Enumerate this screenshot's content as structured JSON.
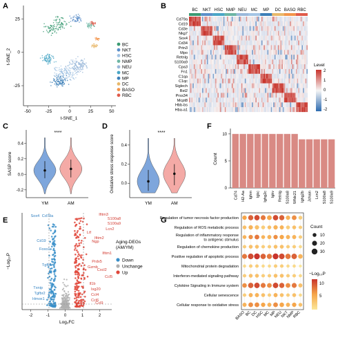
{
  "panels": {
    "A": {
      "letter": "A",
      "xlabel": "t-SNE_1",
      "ylabel": "t-SNE_2",
      "xticks": [
        "-50",
        "-25",
        "0",
        "25",
        "50"
      ],
      "yticks": [
        "25",
        "0",
        "-25"
      ],
      "legend": [
        {
          "label": "BC",
          "color": "#3a9a72"
        },
        {
          "label": "NKT",
          "color": "#5b8fc9"
        },
        {
          "label": "HSC",
          "color": "#a3c4e4"
        },
        {
          "label": "NMP",
          "color": "#6cb5a3"
        },
        {
          "label": "NEU",
          "color": "#9ab8da"
        },
        {
          "label": "MC",
          "color": "#4aa6c6"
        },
        {
          "label": "MP",
          "color": "#3d7fb8"
        },
        {
          "label": "DC",
          "color": "#e8b86a"
        },
        {
          "label": "BASO",
          "color": "#f2944a"
        },
        {
          "label": "RBC",
          "color": "#e05a4a"
        }
      ]
    },
    "B": {
      "letter": "B",
      "columns": [
        {
          "label": "BC",
          "color": "#3a9a72"
        },
        {
          "label": "NKT",
          "color": "#5b8fc9"
        },
        {
          "label": "HSC",
          "color": "#4aa6c6"
        },
        {
          "label": "NMP",
          "color": "#6cb5a3"
        },
        {
          "label": "NEU",
          "color": "#9ab8da"
        },
        {
          "label": "MC",
          "color": "#a3c4e4"
        },
        {
          "label": "MP",
          "color": "#3d7fb8"
        },
        {
          "label": "DC",
          "color": "#e8b86a"
        },
        {
          "label": "BASO",
          "color": "#f2944a"
        },
        {
          "label": "RBC",
          "color": "#e05a4a"
        }
      ],
      "genes": [
        "Cd79a",
        "Cd19",
        "Cd3e",
        "Nkg7",
        "Sox4",
        "Cd34",
        "Prtn3",
        "Mpo",
        "Retnlg",
        "S100a9",
        "Cpa3",
        "Fn1",
        "C1qa",
        "C1qc",
        "Siglech",
        "Bst2",
        "Prss34",
        "Mcpt8",
        "Hbb-bs",
        "Hba-a1"
      ],
      "legend_title": "Level",
      "legend_ticks": [
        "2",
        "1",
        "0",
        "-1",
        "-2"
      ]
    },
    "C": {
      "letter": "C",
      "ylabel": "SASP score",
      "signif": "****",
      "groups": [
        "YM",
        "AM"
      ],
      "yticks": [
        "0.4",
        "0.2",
        "0.0",
        "-0.2"
      ]
    },
    "D": {
      "letter": "D",
      "ylabel": "Oxidative stress response score",
      "signif": "****",
      "groups": [
        "YM",
        "AM"
      ],
      "yticks": [
        "0.4",
        "0.2",
        "0.0"
      ]
    },
    "F": {
      "letter": "F",
      "ylabel": "Count",
      "yticks": [
        "10",
        "5",
        "0"
      ]
    },
    "E": {
      "letter": "E",
      "xlabel": "Log₂FC",
      "ylabel": "−Log₁₀P",
      "xticks": [
        "-2",
        "-1",
        "0",
        "1",
        "2"
      ],
      "legend_title": "Aging-DEGs\n(AM/YM)",
      "legend": [
        {
          "label": "Down",
          "color": "#3a8fc9"
        },
        {
          "label": "Unchange",
          "color": "#b0b0b0"
        },
        {
          "label": "Up",
          "color": "#e0463a"
        }
      ],
      "down_labels": [
        "Sox4",
        "Cd79a",
        "Cd19",
        "Foxo1",
        "Tgfb1",
        "Txnip",
        "Tgfbr2",
        "Hmox1"
      ],
      "up_labels": [
        "Ifitm3",
        "S100a8",
        "S100a9",
        "Lcn2",
        "Ltf",
        "Ifitm2",
        "Ifitm1",
        "Ccl5",
        "Cxcl2",
        "Ccl9",
        "Prdx5",
        "Il1b",
        "Gzmb",
        "Isg20",
        "Ccl4",
        "Ccl6",
        "Ngp"
      ]
    },
    "G": {
      "letter": "G",
      "size_legend_title": "Count",
      "size_legend": [
        "10",
        "20",
        "30"
      ],
      "color_legend_title": "−Log₁₀P",
      "color_legend_ticks": [
        "10",
        "5"
      ],
      "columns": [
        "BASO",
        "BC",
        "DC",
        "HSC",
        "MC",
        "MP",
        "NEU",
        "NKT",
        "NMP",
        "RBC"
      ],
      "terms": [
        "Regulation of tumor necrosis factor production",
        "Regulation of ROS metabolic process",
        "Regulation of inflammatory response\nto antigenic stimulus",
        "Regulation of chemokine production",
        "Positive regulation of apoptotic process",
        "Mitochondrial protein degradation",
        "Interferon-mediated signaling pathway",
        "Cytokine Signaling in Immune system",
        "Cellular senescence",
        "Cellular response to oxidative stress"
      ]
    }
  },
  "chart_data": [
    {
      "type": "scatter",
      "panel": "A",
      "xlabel": "t-SNE_1",
      "ylabel": "t-SNE_2",
      "xlim": [
        -55,
        55
      ],
      "ylim": [
        -40,
        35
      ],
      "series": [
        {
          "name": "BC",
          "centers": [
            [
              -20,
              18
            ],
            [
              -10,
              22
            ]
          ]
        },
        {
          "name": "NKT",
          "centers": [
            [
              8,
              25
            ]
          ]
        },
        {
          "name": "HSC",
          "centers": [
            [
              -5,
              -15
            ]
          ]
        },
        {
          "name": "NMP",
          "centers": [
            [
              25,
              20
            ]
          ]
        },
        {
          "name": "NEU",
          "centers": [
            [
              10,
              -10
            ]
          ]
        },
        {
          "name": "MC",
          "centers": [
            [
              -25,
              -5
            ]
          ]
        },
        {
          "name": "MP",
          "centers": [
            [
              -12,
              -22
            ]
          ]
        },
        {
          "name": "DC",
          "centers": [
            [
              30,
              5
            ]
          ]
        },
        {
          "name": "BASO",
          "centers": [
            [
              33,
              10
            ]
          ]
        },
        {
          "name": "RBC",
          "centers": [
            [
              28,
              22
            ]
          ]
        }
      ]
    },
    {
      "type": "heatmap",
      "panel": "B",
      "columns": [
        "BC",
        "NKT",
        "HSC",
        "NMP",
        "NEU",
        "MC",
        "MP",
        "DC",
        "BASO",
        "RBC"
      ],
      "rows": [
        "Cd79a",
        "Cd19",
        "Cd3e",
        "Nkg7",
        "Sox4",
        "Cd34",
        "Prtn3",
        "Mpo",
        "Retnlg",
        "S100a9",
        "Cpa3",
        "Fn1",
        "C1qa",
        "C1qc",
        "Siglech",
        "Bst2",
        "Prss34",
        "Mcpt8",
        "Hbb-bs",
        "Hba-a1"
      ],
      "block_map": [
        [
          0,
          1
        ],
        [
          2,
          3
        ],
        [
          4,
          5
        ],
        [
          6,
          7
        ],
        [
          8,
          9
        ],
        [
          10,
          11
        ],
        [
          12,
          13
        ],
        [
          14,
          15
        ],
        [
          16,
          17
        ],
        [
          18,
          19
        ]
      ],
      "range": [
        -2,
        2
      ]
    },
    {
      "type": "violin",
      "panel": "C",
      "categories": [
        "YM",
        "AM"
      ],
      "ylabel": "SASP score",
      "ylim": [
        -0.3,
        0.5
      ],
      "means": [
        0.05,
        0.07
      ],
      "ci": [
        [
          -0.05,
          0.17
        ],
        [
          -0.04,
          0.19
        ]
      ],
      "colors": [
        "#7ea6dc",
        "#f4aaa6"
      ]
    },
    {
      "type": "violin",
      "panel": "D",
      "categories": [
        "YM",
        "AM"
      ],
      "ylabel": "Oxidative stress response score",
      "ylim": [
        -0.15,
        0.5
      ],
      "means": [
        0.02,
        0.1
      ],
      "ci": [
        [
          -0.08,
          0.14
        ],
        [
          -0.02,
          0.2
        ]
      ],
      "colors": [
        "#7ea6dc",
        "#f4aaa6"
      ]
    },
    {
      "type": "bar",
      "panel": "F",
      "ylabel": "Count",
      "ylim": [
        0,
        11
      ],
      "categories": [
        "Cd74",
        "H2-Aa",
        "Ighm",
        "Igkc",
        "Ighg2c",
        "Igkv",
        "Retnlg",
        "S100a8",
        "Wfdc21",
        "Ighg2b",
        "Jchain",
        "Lcn2",
        "S100a8",
        "S100a9"
      ],
      "values": [
        10,
        10,
        10,
        10,
        10,
        10,
        10,
        10,
        10,
        9,
        9,
        9,
        9,
        9
      ],
      "color": "#d98a84"
    },
    {
      "type": "scatter",
      "panel": "E",
      "xlabel": "Log₂FC",
      "ylabel": "−Log₁₀P",
      "xlim": [
        -2.5,
        2.7
      ],
      "groups": [
        "Down",
        "Unchange",
        "Up"
      ]
    },
    {
      "type": "dotplot",
      "panel": "G",
      "columns": [
        "BASO",
        "BC",
        "DC",
        "HSC",
        "MC",
        "MP",
        "NEU",
        "NKT",
        "NMP",
        "RBC"
      ],
      "rows": [
        "Regulation of tumor necrosis factor production",
        "Regulation of ROS metabolic process",
        "Regulation of inflammatory response to antigenic stimulus",
        "Regulation of chemokine production",
        "Positive regulation of apoptotic process",
        "Mitochondrial protein degradation",
        "Interferon-mediated signaling pathway",
        "Cytokine Signaling in Immune system",
        "Cellular senescence",
        "Cellular response to oxidative stress"
      ],
      "count": [
        [
          14,
          22,
          24,
          20,
          18,
          24,
          22,
          14,
          18,
          10
        ],
        [
          10,
          14,
          14,
          10,
          10,
          14,
          12,
          10,
          10,
          8
        ],
        [
          10,
          14,
          18,
          10,
          12,
          14,
          14,
          12,
          12,
          8
        ],
        [
          8,
          10,
          10,
          8,
          8,
          10,
          10,
          8,
          8,
          6
        ],
        [
          20,
          28,
          30,
          24,
          22,
          30,
          28,
          24,
          26,
          16
        ],
        [
          6,
          8,
          8,
          6,
          6,
          8,
          8,
          6,
          6,
          4
        ],
        [
          8,
          10,
          10,
          8,
          8,
          10,
          10,
          8,
          8,
          6
        ],
        [
          16,
          24,
          26,
          20,
          18,
          26,
          22,
          18,
          20,
          12
        ],
        [
          8,
          12,
          12,
          10,
          8,
          12,
          10,
          8,
          10,
          6
        ],
        [
          12,
          18,
          18,
          14,
          12,
          18,
          16,
          12,
          14,
          10
        ]
      ],
      "neglog10p": [
        [
          8,
          11,
          12,
          10,
          8,
          12,
          11,
          7,
          9,
          5
        ],
        [
          6,
          7,
          6,
          5,
          6,
          7,
          7,
          5,
          6,
          5
        ],
        [
          7,
          9,
          10,
          7,
          7,
          9,
          8,
          7,
          7,
          5
        ],
        [
          5,
          6,
          6,
          5,
          5,
          6,
          6,
          5,
          5,
          4
        ],
        [
          10,
          12,
          13,
          11,
          10,
          13,
          12,
          10,
          11,
          7
        ],
        [
          4,
          5,
          5,
          4,
          4,
          5,
          5,
          4,
          4,
          3
        ],
        [
          5,
          6,
          6,
          5,
          5,
          6,
          6,
          5,
          5,
          4
        ],
        [
          9,
          11,
          12,
          10,
          9,
          12,
          11,
          9,
          10,
          6
        ],
        [
          5,
          7,
          7,
          6,
          5,
          7,
          6,
          5,
          6,
          4
        ],
        [
          7,
          9,
          9,
          8,
          7,
          9,
          8,
          7,
          8,
          6
        ]
      ]
    }
  ]
}
